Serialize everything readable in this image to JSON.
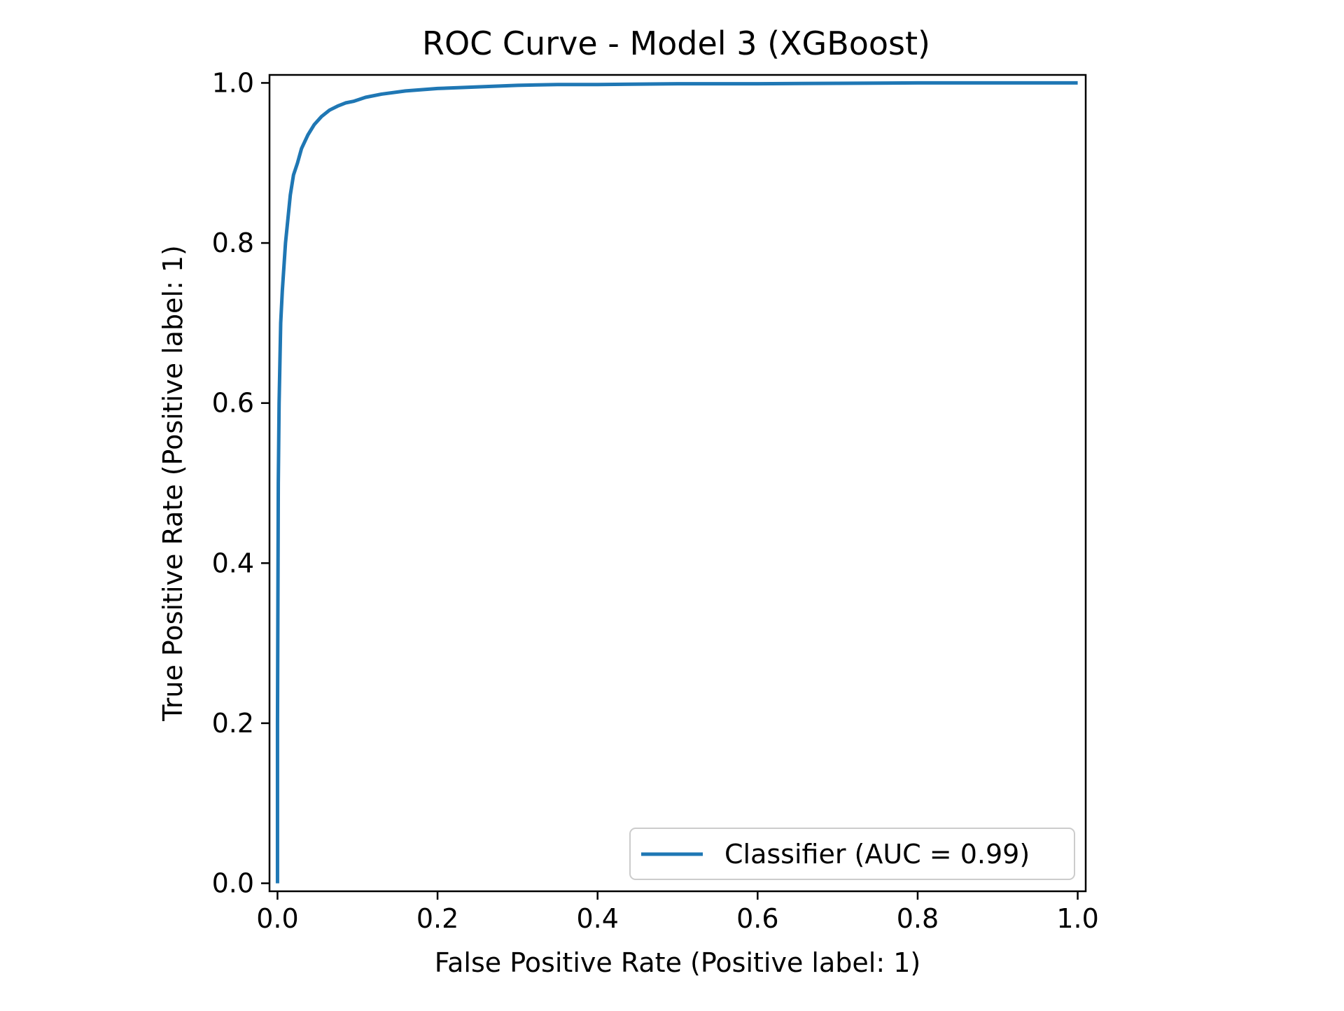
{
  "chart_data": {
    "type": "line",
    "title": "ROC Curve - Model 3 (XGBoost)",
    "xlabel": "False Positive Rate (Positive label: 1)",
    "ylabel": "True Positive Rate (Positive label: 1)",
    "xlim": [
      -0.01,
      1.01
    ],
    "ylim": [
      -0.01,
      1.01
    ],
    "x_ticks": [
      0.0,
      0.2,
      0.4,
      0.6,
      0.8,
      1.0
    ],
    "y_ticks": [
      0.0,
      0.2,
      0.4,
      0.6,
      0.8,
      1.0
    ],
    "x_tick_labels": [
      "0.0",
      "0.2",
      "0.4",
      "0.6",
      "0.8",
      "1.0"
    ],
    "y_tick_labels": [
      "0.0",
      "0.2",
      "0.4",
      "0.6",
      "0.8",
      "1.0"
    ],
    "grid": false,
    "legend_position": "lower-right",
    "legend_label": "Classifier (AUC = 0.99)",
    "colors": {
      "series": "#1f77b4",
      "axes": "#000000",
      "background": "#ffffff"
    },
    "series": [
      {
        "name": "Classifier (AUC = 0.99)",
        "x": [
          0.0,
          0.0,
          0.001,
          0.002,
          0.003,
          0.004,
          0.006,
          0.008,
          0.01,
          0.013,
          0.016,
          0.02,
          0.025,
          0.03,
          0.038,
          0.046,
          0.055,
          0.065,
          0.075,
          0.085,
          0.095,
          0.11,
          0.13,
          0.16,
          0.2,
          0.25,
          0.3,
          0.35,
          0.4,
          0.5,
          0.6,
          0.7,
          0.8,
          0.9,
          1.0
        ],
        "y": [
          0.0,
          0.2,
          0.5,
          0.6,
          0.65,
          0.7,
          0.74,
          0.77,
          0.8,
          0.83,
          0.86,
          0.885,
          0.9,
          0.918,
          0.935,
          0.948,
          0.958,
          0.966,
          0.971,
          0.975,
          0.977,
          0.982,
          0.986,
          0.99,
          0.993,
          0.995,
          0.997,
          0.998,
          0.998,
          0.999,
          0.999,
          0.9995,
          1.0,
          1.0,
          1.0
        ]
      }
    ]
  }
}
